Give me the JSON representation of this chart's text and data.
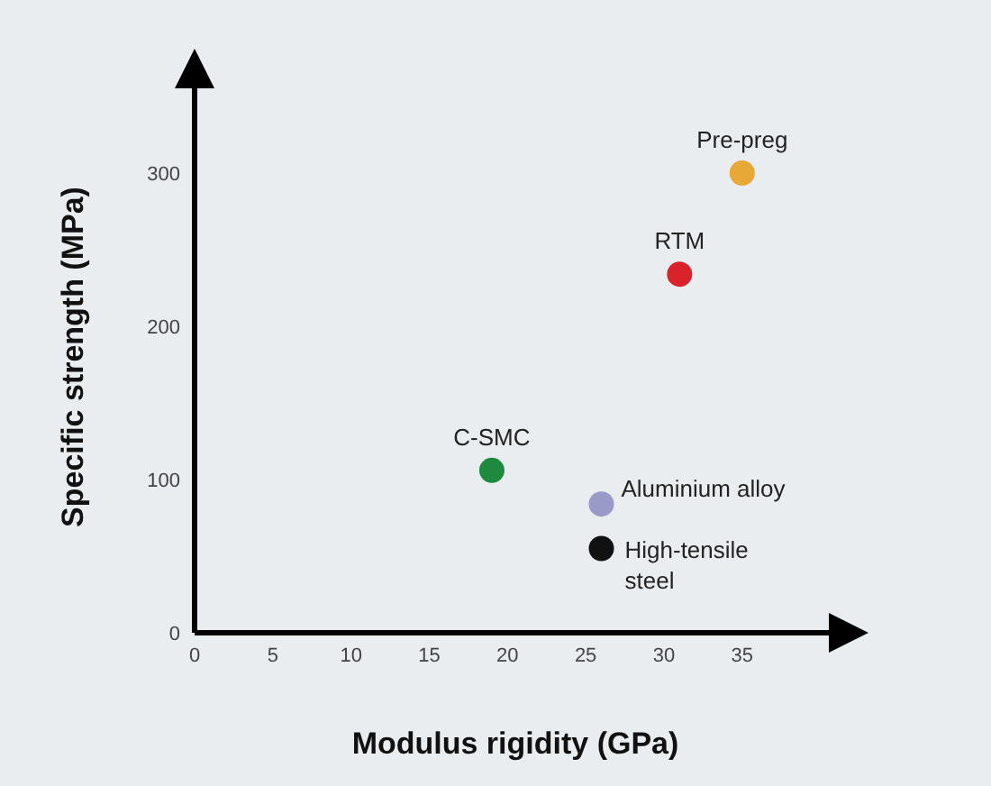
{
  "chart_data": {
    "type": "scatter",
    "xlabel": "Modulus rigidity (GPa)",
    "ylabel": "Specific strength (MPa)",
    "xlim": [
      0,
      41
    ],
    "ylim": [
      0,
      360
    ],
    "xticks": [
      0,
      5,
      10,
      15,
      20,
      25,
      30,
      35
    ],
    "yticks": [
      0,
      100,
      200,
      300
    ],
    "grid": false,
    "legend": false,
    "marker": "circle",
    "series": [
      {
        "name": "Pre-preg",
        "color": "#e8a838",
        "x": [
          35
        ],
        "values": [
          300
        ]
      },
      {
        "name": "RTM",
        "color": "#d9232a",
        "x": [
          31
        ],
        "values": [
          234
        ]
      },
      {
        "name": "C-SMC",
        "color": "#1e8a3e",
        "x": [
          19
        ],
        "values": [
          106
        ]
      },
      {
        "name": "Aluminium alloy",
        "color": "#9a9ac8",
        "x": [
          26
        ],
        "values": [
          84
        ]
      },
      {
        "name": "High-tensile steel",
        "color": "#111111",
        "x": [
          26
        ],
        "values": [
          55
        ]
      }
    ]
  }
}
